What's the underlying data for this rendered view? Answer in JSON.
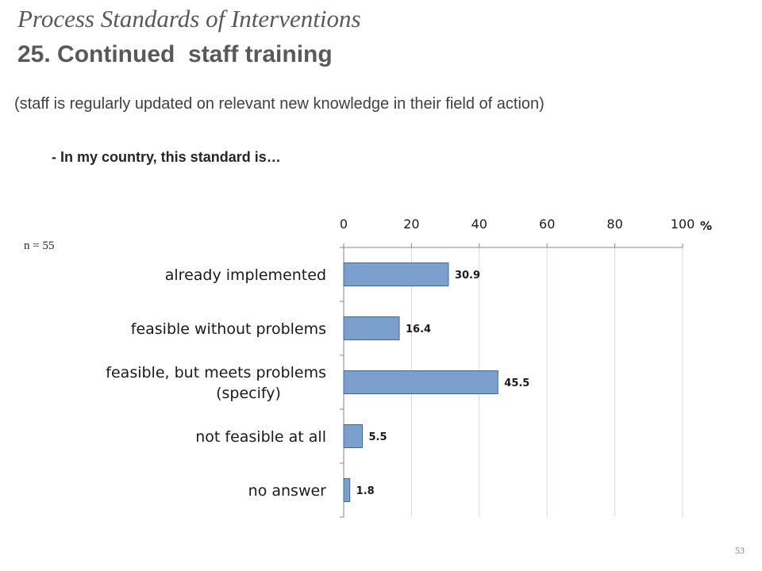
{
  "slide": {
    "title_italic": "Process Standards of Interventions",
    "title_bold": "25. Continued  staff training",
    "subtitle": "(staff is regularly updated on relevant new knowledge in their field of action)",
    "question": "- In my country, this standard is…",
    "sample_size": "n = 55",
    "page_number": "53"
  },
  "chart_data": {
    "type": "bar",
    "orientation": "horizontal",
    "categories": [
      [
        "already implemented"
      ],
      [
        "feasible without problems"
      ],
      [
        "feasible, but meets problems",
        "(specify)"
      ],
      [
        "not feasible at all"
      ],
      [
        "no answer"
      ]
    ],
    "values": [
      30.9,
      16.4,
      45.5,
      5.5,
      1.8
    ],
    "value_labels": [
      "30.9",
      "16.4",
      "45.5",
      "5.5",
      "1.8"
    ],
    "xlim": [
      0,
      100
    ],
    "xticks": [
      0,
      20,
      40,
      60,
      80,
      100
    ],
    "x_unit": "%",
    "axis_position": "top",
    "grid": true,
    "bar_color": "#7ba0cd",
    "bar_edge_color": "#3f6797",
    "grid_color": "#d9d9d9"
  }
}
